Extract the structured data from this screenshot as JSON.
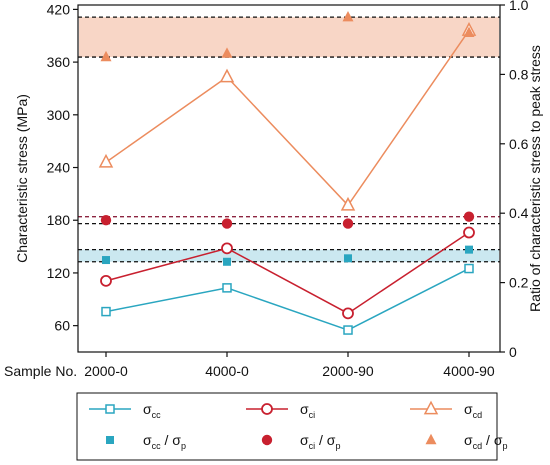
{
  "chart_data": {
    "type": "line",
    "x_title": "Sample No.",
    "categories": [
      "2000-0",
      "4000-0",
      "2000-90",
      "4000-90"
    ],
    "left_axis": {
      "label": "Characteristic stress (MPa)",
      "ylim": [
        30,
        425
      ],
      "ticks": [
        60,
        120,
        180,
        240,
        300,
        360,
        420
      ]
    },
    "right_axis": {
      "label": "Ratio of characteristic stress to peak stress",
      "ylim": [
        0,
        1.0
      ],
      "ticks": [
        "0",
        "0.2",
        "0.4",
        "0.6",
        "0.8",
        "1.0"
      ]
    },
    "series": [
      {
        "name": "σcc",
        "axis": "left",
        "style": "line-open-square",
        "color": "#2aa6c0",
        "values": [
          76,
          103,
          55,
          125
        ]
      },
      {
        "name": "σci",
        "axis": "left",
        "style": "line-open-circle",
        "color": "#c8202f",
        "values": [
          111,
          148,
          74,
          166
        ]
      },
      {
        "name": "σcd",
        "axis": "left",
        "style": "line-open-triangle",
        "color": "#ec8c5e",
        "values": [
          246,
          343,
          197,
          396
        ]
      },
      {
        "name": "σcc / σp",
        "axis": "right",
        "style": "filled-square",
        "color": "#2aa6c0",
        "values": [
          0.265,
          0.26,
          0.27,
          0.295
        ]
      },
      {
        "name": "σci / σp",
        "axis": "right",
        "style": "filled-circle",
        "color": "#c8202f",
        "values": [
          0.38,
          0.37,
          0.37,
          0.39
        ]
      },
      {
        "name": "σcd / σp",
        "axis": "right",
        "style": "filled-triangle",
        "color": "#ec8c5e",
        "values": [
          0.85,
          0.86,
          0.965,
          0.92
        ]
      }
    ],
    "bands": [
      {
        "axis": "right",
        "from": 0.26,
        "to": 0.295,
        "color": "#cbe8f0"
      },
      {
        "axis": "right",
        "from": 0.37,
        "to": 0.39,
        "color": "#ffffff"
      },
      {
        "axis": "right",
        "from": 0.85,
        "to": 0.965,
        "color": "#f8d6c6"
      }
    ],
    "dashed_lines": [
      {
        "axis": "right",
        "value": 0.26,
        "color": "#111111"
      },
      {
        "axis": "right",
        "value": 0.295,
        "color": "#111111"
      },
      {
        "axis": "right",
        "value": 0.37,
        "color": "#111111"
      },
      {
        "axis": "right",
        "value": 0.39,
        "color": "#8c2540"
      },
      {
        "axis": "right",
        "value": 0.85,
        "color": "#111111"
      },
      {
        "axis": "right",
        "value": 0.965,
        "color": "#111111"
      }
    ],
    "legend": {
      "placement": "bottom",
      "rows": [
        [
          {
            "base": "σ",
            "sub": "cc",
            "suffix": "",
            "sub2": "",
            "symbol": "line-open-square",
            "color": "#2aa6c0"
          },
          {
            "base": "σ",
            "sub": "ci",
            "suffix": "",
            "sub2": "",
            "symbol": "line-open-circle",
            "color": "#c8202f"
          },
          {
            "base": "σ",
            "sub": "cd",
            "suffix": "",
            "sub2": "",
            "symbol": "line-open-triangle",
            "color": "#ec8c5e"
          }
        ],
        [
          {
            "base": "σ",
            "sub": "cc",
            "suffix": " / σ",
            "sub2": "p",
            "symbol": "filled-square",
            "color": "#2aa6c0"
          },
          {
            "base": "σ",
            "sub": "ci",
            "suffix": " / σ",
            "sub2": "p",
            "symbol": "filled-circle",
            "color": "#c8202f"
          },
          {
            "base": "σ",
            "sub": "cd",
            "suffix": " / σ",
            "sub2": "p",
            "symbol": "filled-triangle",
            "color": "#ec8c5e"
          }
        ]
      ]
    }
  }
}
